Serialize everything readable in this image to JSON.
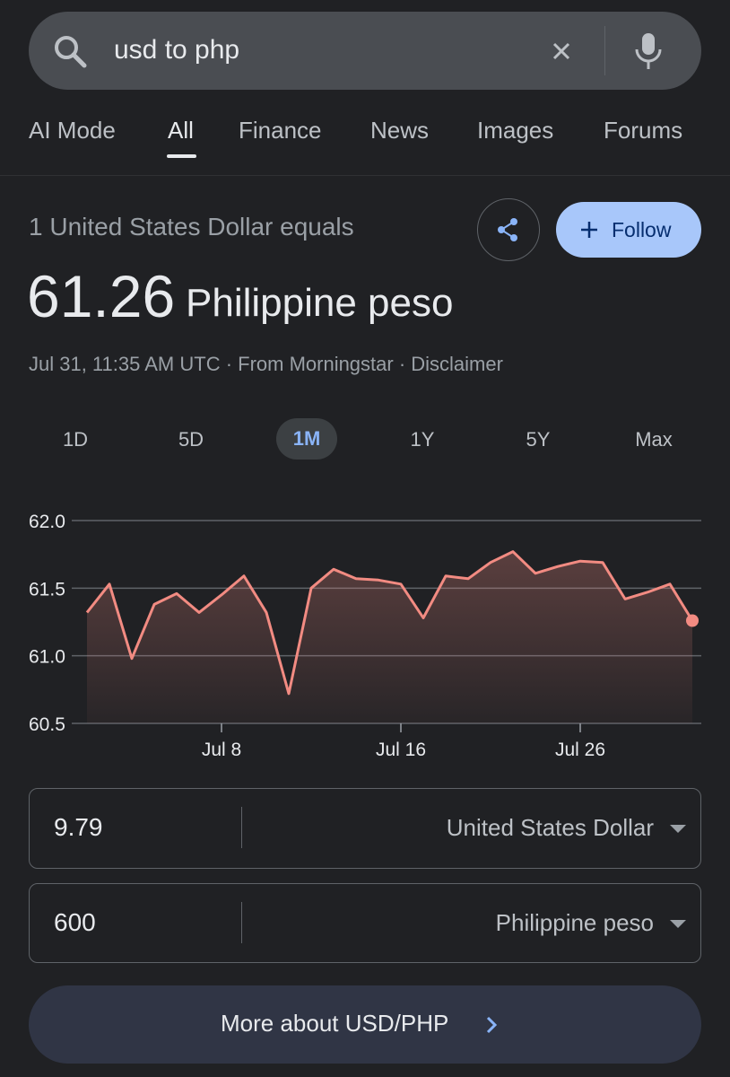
{
  "search": {
    "query": "usd to php"
  },
  "tabs": [
    "AI Mode",
    "All",
    "Finance",
    "News",
    "Images",
    "Forums"
  ],
  "header": {
    "label": "1 United States Dollar equals",
    "rate": "61.26",
    "currency": "Philippine peso",
    "source": "Jul 31, 11:35 AM UTC · From Morningstar · Disclaimer",
    "follow": "Follow"
  },
  "ranges": [
    "1D",
    "5D",
    "1M",
    "1Y",
    "5Y",
    "Max"
  ],
  "chart_data": {
    "type": "line",
    "categories": [
      null,
      null,
      null,
      null,
      null,
      null,
      "Jul 8",
      null,
      null,
      null,
      null,
      null,
      null,
      null,
      "Jul 16",
      null,
      null,
      null,
      null,
      null,
      null,
      null,
      "Jul 26",
      null,
      null,
      null,
      null,
      null
    ],
    "values": [
      61.32,
      61.53,
      60.98,
      61.38,
      61.46,
      61.32,
      61.45,
      61.59,
      61.32,
      60.72,
      61.5,
      61.64,
      61.57,
      61.56,
      61.53,
      61.28,
      61.59,
      61.57,
      61.69,
      61.77,
      61.61,
      61.66,
      61.7,
      61.69,
      61.42,
      61.47,
      61.53,
      61.26
    ],
    "color": "#f28b82",
    "ylim": [
      60.5,
      62.0
    ],
    "yticks": [
      60.5,
      {
        "value": 61,
        "label": "61.0"
      },
      61.5,
      {
        "value": 62,
        "label": "62.0"
      }
    ],
    "grid": true
  },
  "converter": {
    "rows": [
      {
        "amount": "9.79",
        "currency": "United States Dollar"
      },
      {
        "amount": "600",
        "currency": "Philippine peso"
      }
    ]
  },
  "more_link": "More about USD/PHP"
}
